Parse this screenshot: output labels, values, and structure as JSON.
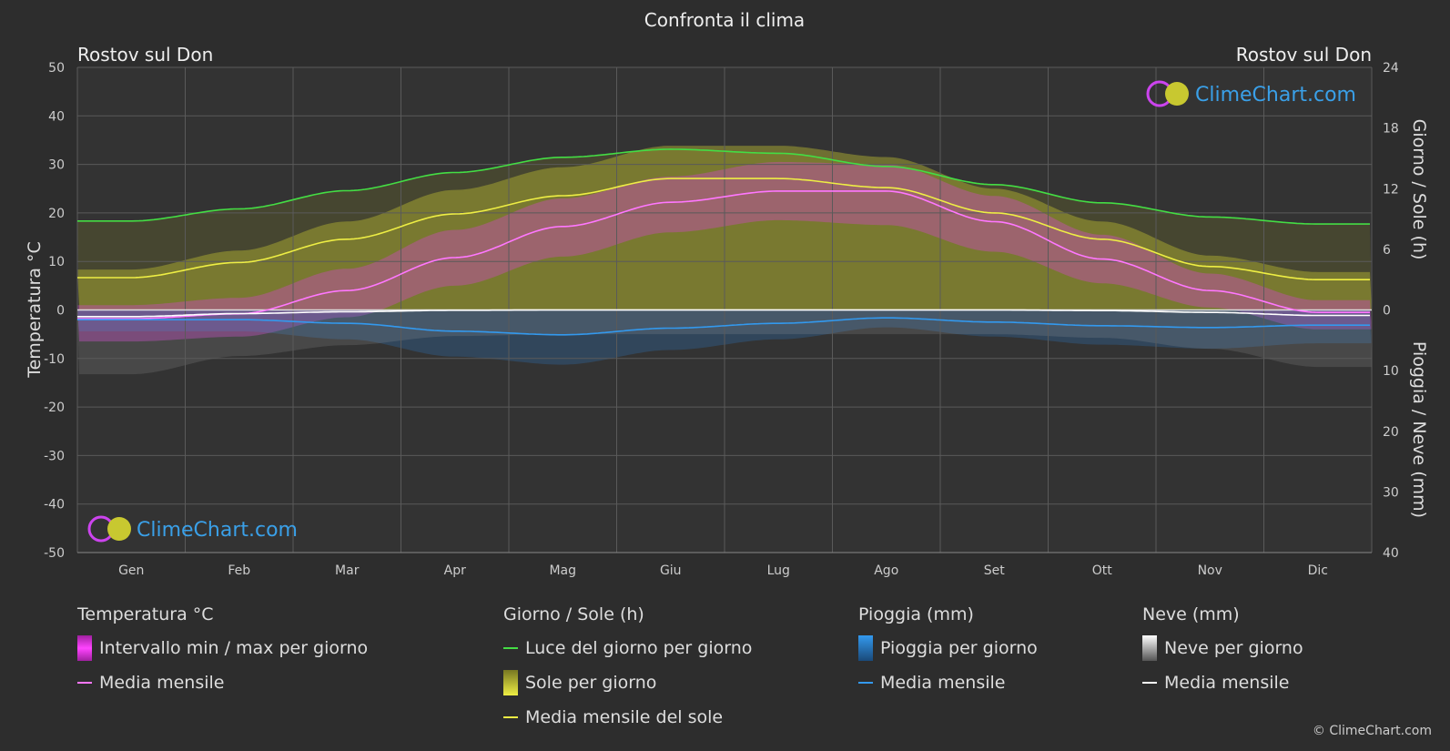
{
  "title": "Confronta il clima",
  "location_left": "Rostov sul Don",
  "location_right": "Rostov sul Don",
  "watermark": "ClimeChart.com",
  "copyright": "© ClimeChart.com",
  "colors": {
    "background": "#2d2d2d",
    "daylight": "#44dd44",
    "sun_fill": "#b8b830",
    "sun_mean": "#eeee44",
    "temp_band": "#e040e0",
    "temp_mean": "#ff77ff",
    "rain": "#2a7fd4",
    "rain_mean": "#3399ee",
    "snow": "#aaaaaa",
    "snow_mean": "#ffffff"
  },
  "legend": {
    "temperature": {
      "title": "Temperatura °C",
      "range_label": "Intervallo min / max per giorno",
      "mean_label": "Media mensile"
    },
    "daysun": {
      "title": "Giorno / Sole (h)",
      "daylight_label": "Luce del giorno per giorno",
      "sun_label": "Sole per giorno",
      "sun_mean_label": "Media mensile del sole"
    },
    "rain": {
      "title": "Pioggia (mm)",
      "rain_label": "Pioggia per giorno",
      "mean_label": "Media mensile"
    },
    "snow": {
      "title": "Neve (mm)",
      "snow_label": "Neve per giorno",
      "mean_label": "Media mensile"
    }
  },
  "chart_data": {
    "type": "line",
    "title": "Confronta il clima",
    "categories": [
      "Gen",
      "Feb",
      "Mar",
      "Apr",
      "Mag",
      "Giu",
      "Lug",
      "Ago",
      "Set",
      "Ott",
      "Nov",
      "Dic"
    ],
    "y_left": {
      "label": "Temperatura °C",
      "range": [
        -50,
        50
      ],
      "ticks": [
        "50",
        "40",
        "30",
        "20",
        "10",
        "0",
        "-10",
        "-20",
        "-30",
        "-40",
        "-50"
      ]
    },
    "y_right_top": {
      "label": "Giorno / Sole (h)",
      "range": [
        0,
        24
      ],
      "ticks": [
        "24",
        "18",
        "12",
        "6",
        "0"
      ]
    },
    "y_right_bottom": {
      "label": "Pioggia / Neve (mm)",
      "range": [
        0,
        40
      ],
      "ticks": [
        "10",
        "20",
        "30",
        "40"
      ]
    },
    "grid": true,
    "series": [
      {
        "name": "Luce del giorno per giorno",
        "axis": "hours",
        "values": [
          8.8,
          10.0,
          11.8,
          13.6,
          15.1,
          15.9,
          15.5,
          14.2,
          12.4,
          10.6,
          9.2,
          8.5
        ]
      },
      {
        "name": "Media mensile del sole",
        "axis": "hours",
        "values": [
          3.2,
          4.7,
          7.0,
          9.5,
          11.3,
          13.0,
          13.0,
          12.1,
          9.6,
          7.0,
          4.3,
          3.0
        ]
      },
      {
        "name": "Temperatura media mensile",
        "axis": "temperature",
        "values": [
          -1.8,
          -0.8,
          4.0,
          10.8,
          17.2,
          22.2,
          24.5,
          24.5,
          18.2,
          10.5,
          4.0,
          -0.5
        ]
      },
      {
        "name": "Temperatura max giornaliera",
        "axis": "temperature",
        "values": [
          1,
          2.5,
          8.5,
          16.5,
          23,
          27.5,
          30.5,
          30,
          23.5,
          15.5,
          7.5,
          2
        ]
      },
      {
        "name": "Temperatura min giornaliera",
        "axis": "temperature",
        "values": [
          -6.5,
          -5.5,
          -1.5,
          5,
          11,
          16,
          18.5,
          17.5,
          12,
          5.5,
          0.5,
          -4
        ]
      },
      {
        "name": "Pioggia media mensile",
        "axis": "rain",
        "values": [
          1.6,
          1.6,
          2.2,
          3.5,
          4.1,
          3.0,
          2.2,
          1.3,
          2.0,
          2.6,
          2.9,
          2.5
        ]
      },
      {
        "name": "Neve media mensile",
        "axis": "rain",
        "values": [
          1.1,
          0.6,
          0.3,
          0.05,
          0,
          0,
          0,
          0,
          0,
          0.1,
          0.4,
          0.9
        ]
      }
    ]
  }
}
